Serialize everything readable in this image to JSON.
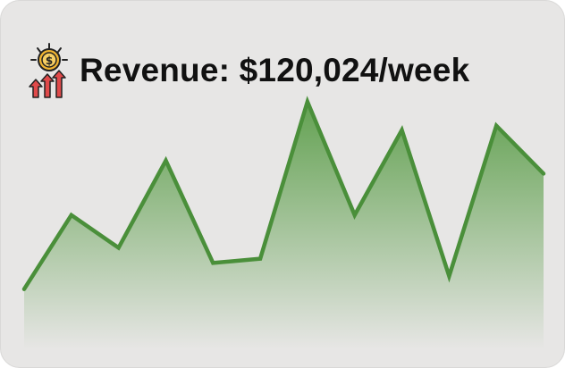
{
  "widget": {
    "title": "Revenue: $120,024/week",
    "icon": "revenue-growth-icon",
    "colors": {
      "line": "#4a8f3a",
      "fill_top": "#5c9e4a",
      "fill_bottom": "#e7e6e5",
      "background": "#e7e6e5"
    }
  },
  "chart_data": {
    "type": "area",
    "title": "Revenue: $120,024/week",
    "xlabel": "",
    "ylabel": "",
    "grid": false,
    "legend": "none",
    "ylim": [
      0,
      100
    ],
    "x": [
      0,
      1,
      2,
      3,
      4,
      5,
      6,
      7,
      8,
      9,
      10,
      11
    ],
    "series": [
      {
        "values": [
          12,
          46,
          31,
          71,
          24,
          26,
          98,
          46,
          85,
          18,
          87,
          65
        ]
      }
    ]
  }
}
